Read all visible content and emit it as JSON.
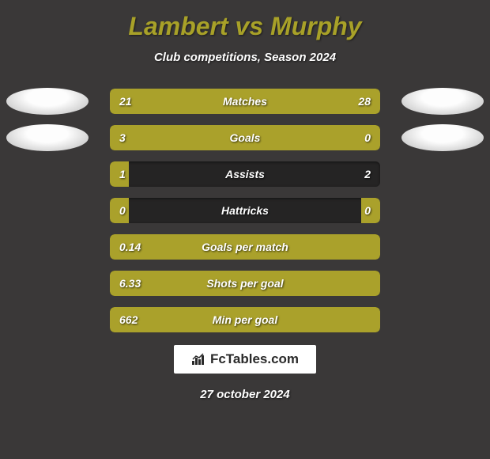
{
  "background_color": "#3a3838",
  "title": {
    "player1": "Lambert",
    "vs": "vs",
    "player2": "Murphy",
    "color": "#a8a128"
  },
  "subtitle": "Club competitions, Season 2024",
  "bar_color": "#aaa12b",
  "bar_bg_color": "#252424",
  "ellipse_gradient_light": "#fdfdfd",
  "ellipse_gradient_dark": "#b8b8b8",
  "stats": [
    {
      "label": "Matches",
      "left_value": "21",
      "right_value": "28",
      "left_width_pct": 40,
      "right_width_pct": 60,
      "show_ellipses": true
    },
    {
      "label": "Goals",
      "left_value": "3",
      "right_value": "0",
      "left_width_pct": 77,
      "right_width_pct": 23,
      "show_ellipses": true
    },
    {
      "label": "Assists",
      "left_value": "1",
      "right_value": "2",
      "left_width_pct": 7,
      "right_width_pct": 0,
      "show_ellipses": false
    },
    {
      "label": "Hattricks",
      "left_value": "0",
      "right_value": "0",
      "left_width_pct": 7,
      "right_width_pct": 7,
      "show_ellipses": false
    },
    {
      "label": "Goals per match",
      "left_value": "0.14",
      "right_value": "",
      "left_width_pct": 100,
      "right_width_pct": 0,
      "show_ellipses": false,
      "full": true
    },
    {
      "label": "Shots per goal",
      "left_value": "6.33",
      "right_value": "",
      "left_width_pct": 100,
      "right_width_pct": 0,
      "show_ellipses": false,
      "full": true
    },
    {
      "label": "Min per goal",
      "left_value": "662",
      "right_value": "",
      "left_width_pct": 100,
      "right_width_pct": 0,
      "show_ellipses": false,
      "full": true
    }
  ],
  "footer": {
    "logo_text": "FcTables.com",
    "date": "27 october 2024"
  }
}
